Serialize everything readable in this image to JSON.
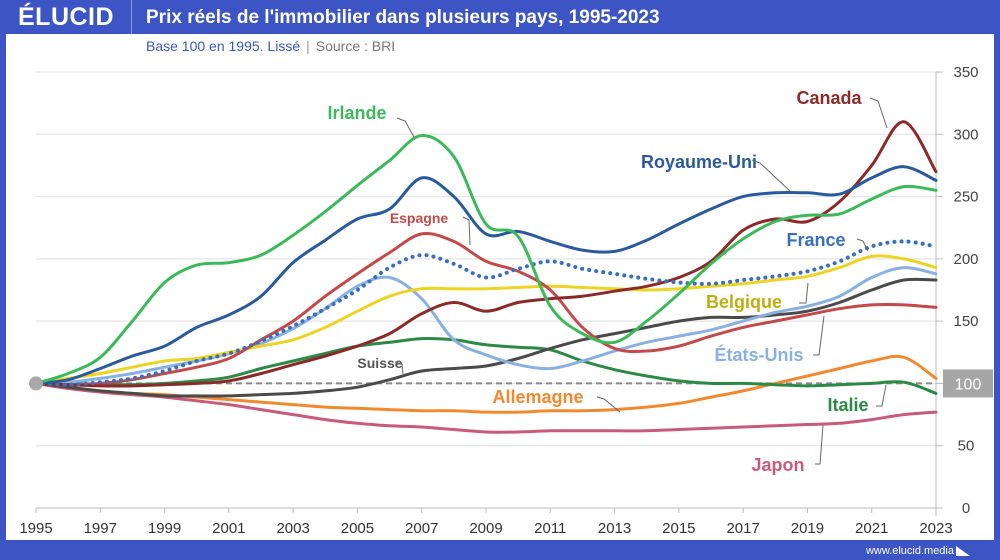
{
  "header": {
    "logo": "ÉLUCID",
    "title": "Prix réels de l'immobilier dans plusieurs pays, 1995-2023",
    "subtitle": "Base 100 en 1995. Lissé",
    "source": "Source : BRI",
    "separator": "|"
  },
  "footer": {
    "url": "www.elucid.media"
  },
  "chart_data": {
    "type": "line",
    "title": "Prix réels de l'immobilier dans plusieurs pays, 1995-2023",
    "subtitle": "Base 100 en 1995. Lissé",
    "xlabel": "",
    "ylabel": "",
    "xlim": [
      1995,
      2023
    ],
    "ylim": [
      0,
      350
    ],
    "x_ticks": [
      "1995",
      "1997",
      "1999",
      "2001",
      "2003",
      "2005",
      "2007",
      "2009",
      "2011",
      "2013",
      "2015",
      "2017",
      "2019",
      "2021",
      "2023"
    ],
    "y_ticks": [
      "0",
      "50",
      "100",
      "150",
      "200",
      "250",
      "300",
      "350"
    ],
    "reference_line": {
      "value": 100,
      "label": "100"
    },
    "grid": true,
    "legend": "inline-labels",
    "x": [
      1995,
      1996,
      1997,
      1998,
      1999,
      2000,
      2001,
      2002,
      2003,
      2004,
      2005,
      2006,
      2007,
      2008,
      2009,
      2010,
      2011,
      2012,
      2013,
      2014,
      2015,
      2016,
      2017,
      2018,
      2019,
      2020,
      2021,
      2022,
      2023
    ],
    "series": [
      {
        "name": "Irlande",
        "color": "#3cb95a",
        "dash": "solid",
        "values": [
          100,
          108,
          121,
          150,
          181,
          195,
          197,
          203,
          219,
          238,
          259,
          279,
          299,
          282,
          228,
          218,
          162,
          140,
          133,
          150,
          172,
          196,
          216,
          230,
          235,
          236,
          248,
          258,
          255
        ]
      },
      {
        "name": "Royaume-Uni",
        "color": "#2a5a9c",
        "dash": "solid",
        "values": [
          100,
          103,
          112,
          122,
          130,
          145,
          155,
          170,
          197,
          215,
          232,
          240,
          265,
          250,
          220,
          222,
          214,
          207,
          206,
          215,
          228,
          240,
          250,
          253,
          253,
          252,
          265,
          274,
          263
        ]
      },
      {
        "name": "Canada",
        "color": "#8c2a2a",
        "dash": "solid",
        "values": [
          100,
          99,
          98,
          98,
          99,
          100,
          102,
          108,
          115,
          122,
          130,
          140,
          156,
          165,
          158,
          165,
          168,
          170,
          174,
          178,
          185,
          198,
          223,
          232,
          230,
          246,
          275,
          310,
          270
        ]
      },
      {
        "name": "Espagne",
        "color": "#c24a4a",
        "dash": "solid",
        "values": [
          100,
          99,
          100,
          103,
          108,
          113,
          120,
          135,
          150,
          170,
          188,
          205,
          220,
          214,
          198,
          190,
          175,
          145,
          128,
          126,
          130,
          138,
          145,
          150,
          155,
          160,
          163,
          163,
          161
        ]
      },
      {
        "name": "France",
        "color": "#3a6fc0",
        "dash": "dot",
        "values": [
          100,
          99,
          101,
          104,
          110,
          118,
          124,
          134,
          146,
          160,
          175,
          193,
          203,
          196,
          185,
          192,
          198,
          192,
          188,
          184,
          181,
          180,
          183,
          186,
          190,
          198,
          210,
          214,
          210
        ]
      },
      {
        "name": "Belgique",
        "color": "#ecd424",
        "dash": "solid",
        "values": [
          100,
          104,
          108,
          113,
          118,
          120,
          125,
          130,
          135,
          145,
          158,
          170,
          176,
          176,
          176,
          177,
          178,
          177,
          176,
          175,
          176,
          178,
          180,
          183,
          186,
          193,
          202,
          200,
          193
        ]
      },
      {
        "name": "États-Unis",
        "color": "#88b0e0",
        "dash": "solid",
        "values": [
          100,
          101,
          104,
          108,
          113,
          118,
          124,
          132,
          144,
          160,
          178,
          185,
          168,
          135,
          123,
          115,
          112,
          118,
          126,
          133,
          138,
          143,
          150,
          157,
          162,
          170,
          185,
          193,
          188
        ]
      },
      {
        "name": "Suisse",
        "color": "#4a4a4a",
        "dash": "solid",
        "values": [
          100,
          97,
          94,
          92,
          90,
          90,
          90,
          91,
          92,
          94,
          97,
          103,
          110,
          112,
          114,
          120,
          128,
          135,
          140,
          145,
          150,
          153,
          153,
          155,
          158,
          165,
          175,
          183,
          183
        ]
      },
      {
        "name": "Italie",
        "color": "#2a8a46",
        "dash": "solid",
        "values": [
          100,
          100,
          99,
          99,
          100,
          102,
          105,
          112,
          118,
          124,
          130,
          133,
          136,
          135,
          131,
          129,
          127,
          118,
          111,
          106,
          102,
          100,
          100,
          99,
          98,
          99,
          100,
          101,
          92
        ]
      },
      {
        "name": "Allemagne",
        "color": "#f08a30",
        "dash": "solid",
        "values": [
          100,
          97,
          94,
          92,
          91,
          89,
          87,
          85,
          83,
          81,
          80,
          79,
          78,
          78,
          77,
          77,
          78,
          78,
          79,
          81,
          84,
          89,
          94,
          100,
          106,
          112,
          118,
          121,
          104
        ]
      },
      {
        "name": "Japon",
        "color": "#c85a7a",
        "dash": "solid",
        "values": [
          100,
          96,
          93,
          91,
          89,
          86,
          83,
          79,
          75,
          71,
          68,
          66,
          65,
          63,
          61,
          61,
          62,
          62,
          62,
          62,
          63,
          64,
          65,
          66,
          67,
          68,
          71,
          75,
          77
        ]
      }
    ]
  }
}
